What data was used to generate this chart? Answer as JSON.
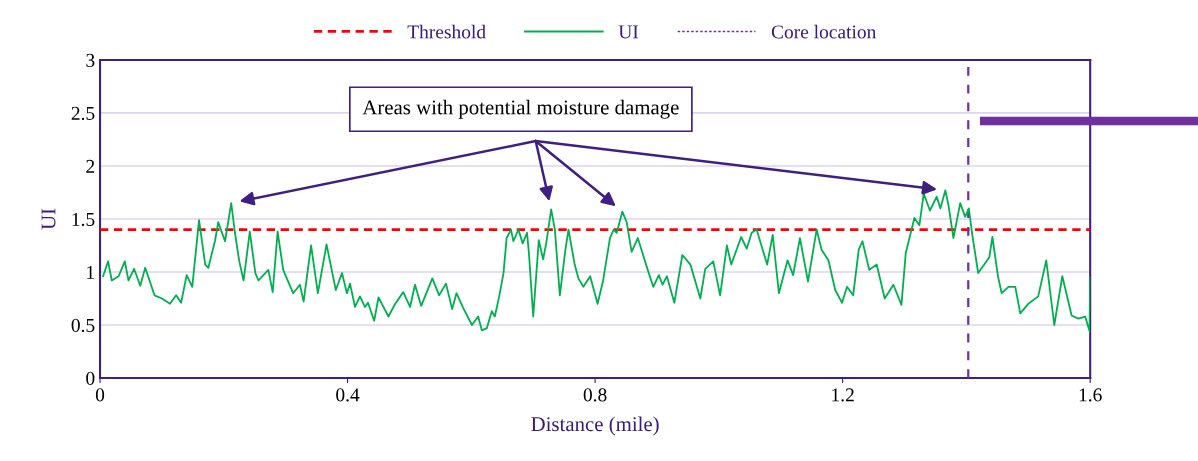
{
  "chart_data": {
    "type": "line",
    "xlabel": "Distance (mile)",
    "ylabel": "UI",
    "xlim": [
      0,
      1.6
    ],
    "xticks": [
      0,
      0.4,
      0.8,
      1.2,
      1.6
    ],
    "ylim": [
      0,
      3
    ],
    "yticks": [
      0,
      0.5,
      1,
      1.5,
      2,
      2.5,
      3
    ],
    "grid": "y",
    "legend": "top",
    "line_style": "solid",
    "marker": "none",
    "series": [
      {
        "name": "UI",
        "color": "#00b050",
        "x": [
          0.005,
          0.013,
          0.019,
          0.03,
          0.04,
          0.046,
          0.055,
          0.065,
          0.073,
          0.088,
          0.1,
          0.113,
          0.123,
          0.131,
          0.14,
          0.149,
          0.16,
          0.17,
          0.175,
          0.186,
          0.191,
          0.202,
          0.212,
          0.218,
          0.225,
          0.232,
          0.242,
          0.251,
          0.256,
          0.272,
          0.279,
          0.287,
          0.296,
          0.312,
          0.323,
          0.329,
          0.341,
          0.352,
          0.366,
          0.381,
          0.391,
          0.399,
          0.404,
          0.412,
          0.42,
          0.428,
          0.433,
          0.443,
          0.45,
          0.466,
          0.477,
          0.49,
          0.501,
          0.509,
          0.519,
          0.537,
          0.548,
          0.559,
          0.569,
          0.576,
          0.587,
          0.601,
          0.611,
          0.617,
          0.625,
          0.633,
          0.638,
          0.645,
          0.652,
          0.657,
          0.664,
          0.668,
          0.676,
          0.683,
          0.69,
          0.693,
          0.7,
          0.709,
          0.716,
          0.721,
          0.729,
          0.735,
          0.743,
          0.752,
          0.757,
          0.767,
          0.773,
          0.781,
          0.792,
          0.804,
          0.813,
          0.824,
          0.83,
          0.835,
          0.844,
          0.851,
          0.859,
          0.869,
          0.885,
          0.894,
          0.903,
          0.909,
          0.916,
          0.928,
          0.941,
          0.954,
          0.97,
          0.978,
          0.991,
          1.002,
          1.013,
          1.02,
          1.036,
          1.045,
          1.053,
          1.061,
          1.078,
          1.087,
          1.097,
          1.111,
          1.12,
          1.131,
          1.144,
          1.158,
          1.166,
          1.177,
          1.188,
          1.199,
          1.207,
          1.217,
          1.226,
          1.232,
          1.243,
          1.255,
          1.268,
          1.282,
          1.295,
          1.302,
          1.316,
          1.324,
          1.331,
          1.341,
          1.352,
          1.358,
          1.366,
          1.371,
          1.379,
          1.39,
          1.398,
          1.404,
          1.409,
          1.419,
          1.43,
          1.437,
          1.442,
          1.451,
          1.457,
          1.468,
          1.479,
          1.487,
          1.5,
          1.516,
          1.529,
          1.542,
          1.555,
          1.57,
          1.581,
          1.592,
          1.599,
          1.6
        ],
        "values": [
          0.96,
          1.1,
          0.92,
          0.96,
          1.1,
          0.92,
          1.03,
          0.87,
          1.04,
          0.78,
          0.75,
          0.7,
          0.78,
          0.71,
          0.97,
          0.86,
          1.49,
          1.07,
          1.04,
          1.3,
          1.47,
          1.29,
          1.65,
          1.37,
          1.1,
          0.92,
          1.38,
          0.99,
          0.92,
          1.02,
          0.81,
          1.38,
          1.02,
          0.8,
          0.88,
          0.72,
          1.25,
          0.8,
          1.26,
          0.83,
          0.99,
          0.8,
          0.89,
          0.67,
          0.77,
          0.67,
          0.71,
          0.54,
          0.76,
          0.58,
          0.7,
          0.81,
          0.67,
          0.88,
          0.68,
          0.94,
          0.78,
          0.89,
          0.65,
          0.8,
          0.66,
          0.5,
          0.58,
          0.45,
          0.47,
          0.63,
          0.58,
          0.77,
          0.99,
          1.32,
          1.4,
          1.29,
          1.4,
          1.27,
          1.37,
          1.18,
          0.58,
          1.3,
          1.12,
          1.27,
          1.59,
          1.4,
          0.78,
          1.21,
          1.4,
          1.07,
          0.94,
          0.86,
          0.96,
          0.7,
          0.92,
          1.32,
          1.4,
          1.37,
          1.57,
          1.47,
          1.19,
          1.32,
          1.02,
          0.86,
          0.97,
          0.88,
          0.96,
          0.71,
          1.16,
          1.07,
          0.75,
          1.03,
          1.1,
          0.78,
          1.25,
          1.07,
          1.33,
          1.22,
          1.37,
          1.4,
          1.07,
          1.35,
          0.8,
          1.11,
          0.97,
          1.32,
          0.91,
          1.4,
          1.21,
          1.11,
          0.83,
          0.71,
          0.86,
          0.78,
          1.21,
          1.29,
          1.02,
          1.07,
          0.75,
          0.88,
          0.69,
          1.18,
          1.51,
          1.44,
          1.74,
          1.58,
          1.71,
          1.6,
          1.77,
          1.63,
          1.32,
          1.65,
          1.52,
          1.6,
          1.37,
          0.99,
          1.08,
          1.14,
          1.33,
          0.96,
          0.8,
          0.86,
          0.86,
          0.61,
          0.7,
          0.77,
          1.11,
          0.5,
          0.96,
          0.59,
          0.56,
          0.58,
          0.44,
          0.95
        ]
      }
    ],
    "ref_lines": [
      {
        "axis": "y",
        "value": 1.4,
        "label": "Threshold",
        "color": "#ff0000",
        "line_style": "dashed"
      },
      {
        "axis": "x",
        "value": 1.403,
        "label": "Core location",
        "color": "#7030a0",
        "line_style": "dotted"
      }
    ],
    "annotations": [
      "Areas with potential moisture damage"
    ]
  }
}
